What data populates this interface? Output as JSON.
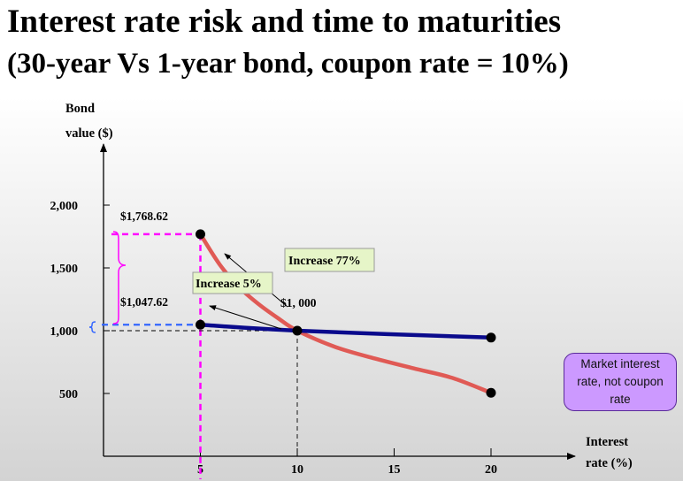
{
  "title_line1": "Interest rate risk and time to maturities",
  "title_line2": "(30-year Vs 1-year bond, coupon rate = 10%)",
  "callout_text": "Market interest rate, not coupon rate",
  "annotations": {
    "price_30y_at_5": "$1,768.62",
    "price_1y_at_5": "$1,047.62",
    "par_value": "$1, 000",
    "increase_30y": "Increase 77%",
    "increase_1y": "Increase 5%"
  },
  "chart_data": {
    "type": "line",
    "ylabel_lines": [
      "Bond",
      "value ($)"
    ],
    "xlabel_lines": [
      "Interest",
      "rate (%)"
    ],
    "x_ticks": [
      5,
      10,
      15,
      20
    ],
    "x_tick_labels": [
      "5",
      "10",
      "15",
      "20"
    ],
    "y_ticks": [
      500,
      1000,
      1500,
      2000
    ],
    "y_tick_labels": [
      "500",
      "1,000",
      "1,500",
      "2,000"
    ],
    "xlim": [
      0,
      25
    ],
    "ylim": [
      0,
      2300
    ],
    "series": [
      {
        "color": "#e05a55",
        "x": [
          5,
          6,
          7,
          8,
          9,
          10,
          12,
          14,
          16,
          18,
          20
        ],
        "values": [
          1768.62,
          1526.3,
          1346.2,
          1211.9,
          1100.2,
          1000,
          868.2,
          778.4,
          700.2,
          624.0,
          505
        ]
      },
      {
        "color": "#0a0a8c",
        "x": [
          5,
          10,
          20
        ],
        "values": [
          1047.62,
          1000,
          945
        ]
      }
    ],
    "points": [
      {
        "x": 5,
        "y": 1768.62
      },
      {
        "x": 5,
        "y": 1047.62
      },
      {
        "x": 10,
        "y": 1000
      },
      {
        "x": 20,
        "y": 505
      },
      {
        "x": 20,
        "y": 945
      }
    ],
    "grid": false,
    "legend": "none"
  },
  "colors": {
    "curve_30y": "#e05a55",
    "curve_1y": "#0a0a8c",
    "guide_magenta": "#ff00ff",
    "guide_blue": "#3366ff",
    "label_box": "#e6f5c8",
    "callout_fill": "#cc99ff"
  }
}
